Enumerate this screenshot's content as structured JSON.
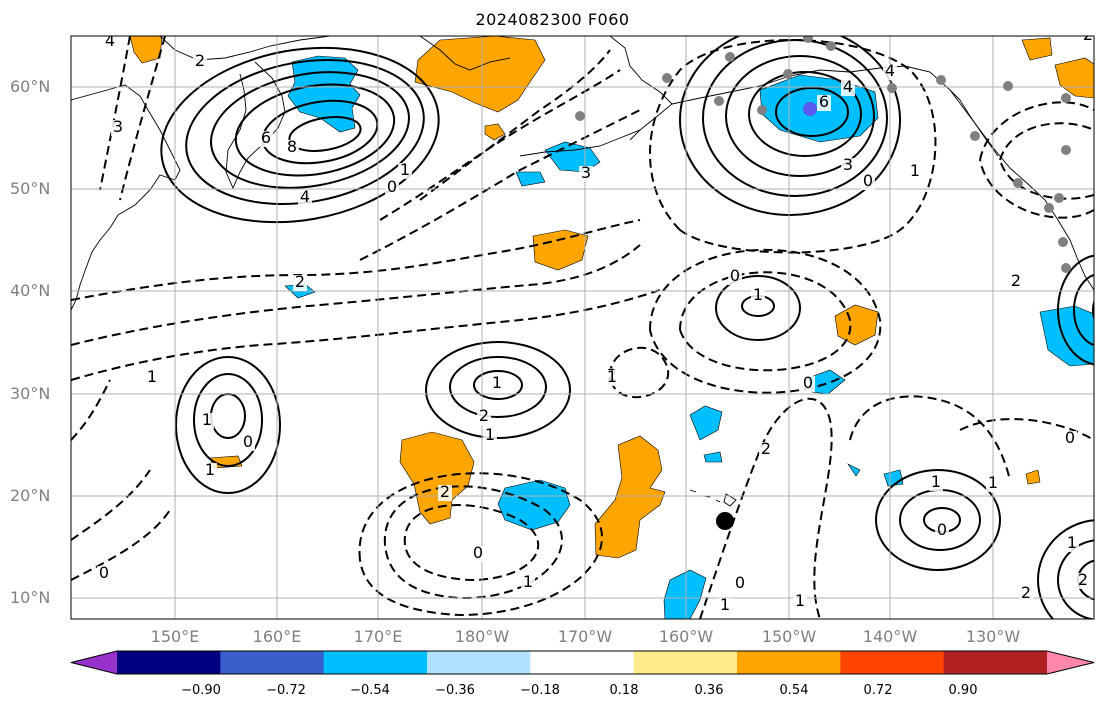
{
  "title": "2024082300 F060",
  "lat_labels": [
    "60°N",
    "50°N",
    "40°N",
    "30°N",
    "20°N",
    "10°N"
  ],
  "lon_labels": [
    "150°E",
    "160°E",
    "170°E",
    "180°W",
    "170°W",
    "160°W",
    "150°W",
    "140°W",
    "130°W"
  ],
  "colorbar": {
    "colors": [
      "#9932cc",
      "#000080",
      "#3a5fcd",
      "#00bfff",
      "#b0e2ff",
      "#ffffff",
      "#ffec8b",
      "#ffa500",
      "#ff4500",
      "#b22222",
      "#ff88aa"
    ],
    "ticks": [
      "−0.90",
      "−0.72",
      "−0.54",
      "−0.36",
      "−0.18",
      "0.18",
      "0.36",
      "0.54",
      "0.72",
      "0.90"
    ]
  },
  "contour_labels": [
    "4",
    "2",
    "3",
    "8",
    "6",
    "4",
    "1",
    "0",
    "4",
    "6",
    "4",
    "2",
    "3",
    "0",
    "1",
    "2",
    "0",
    "1",
    "2",
    "1",
    "0",
    "1",
    "1",
    "2",
    "1",
    "0",
    "2",
    "1",
    "0",
    "1",
    "1",
    "2",
    "0",
    "1",
    "0",
    "1",
    "2",
    "0",
    "1",
    "2",
    "0",
    "1",
    "3",
    "2",
    "1"
  ],
  "colors": {
    "orange": "#ffa500",
    "skyblue": "#00bfff",
    "grid": "#b0b0b0",
    "coast": "#000000"
  }
}
